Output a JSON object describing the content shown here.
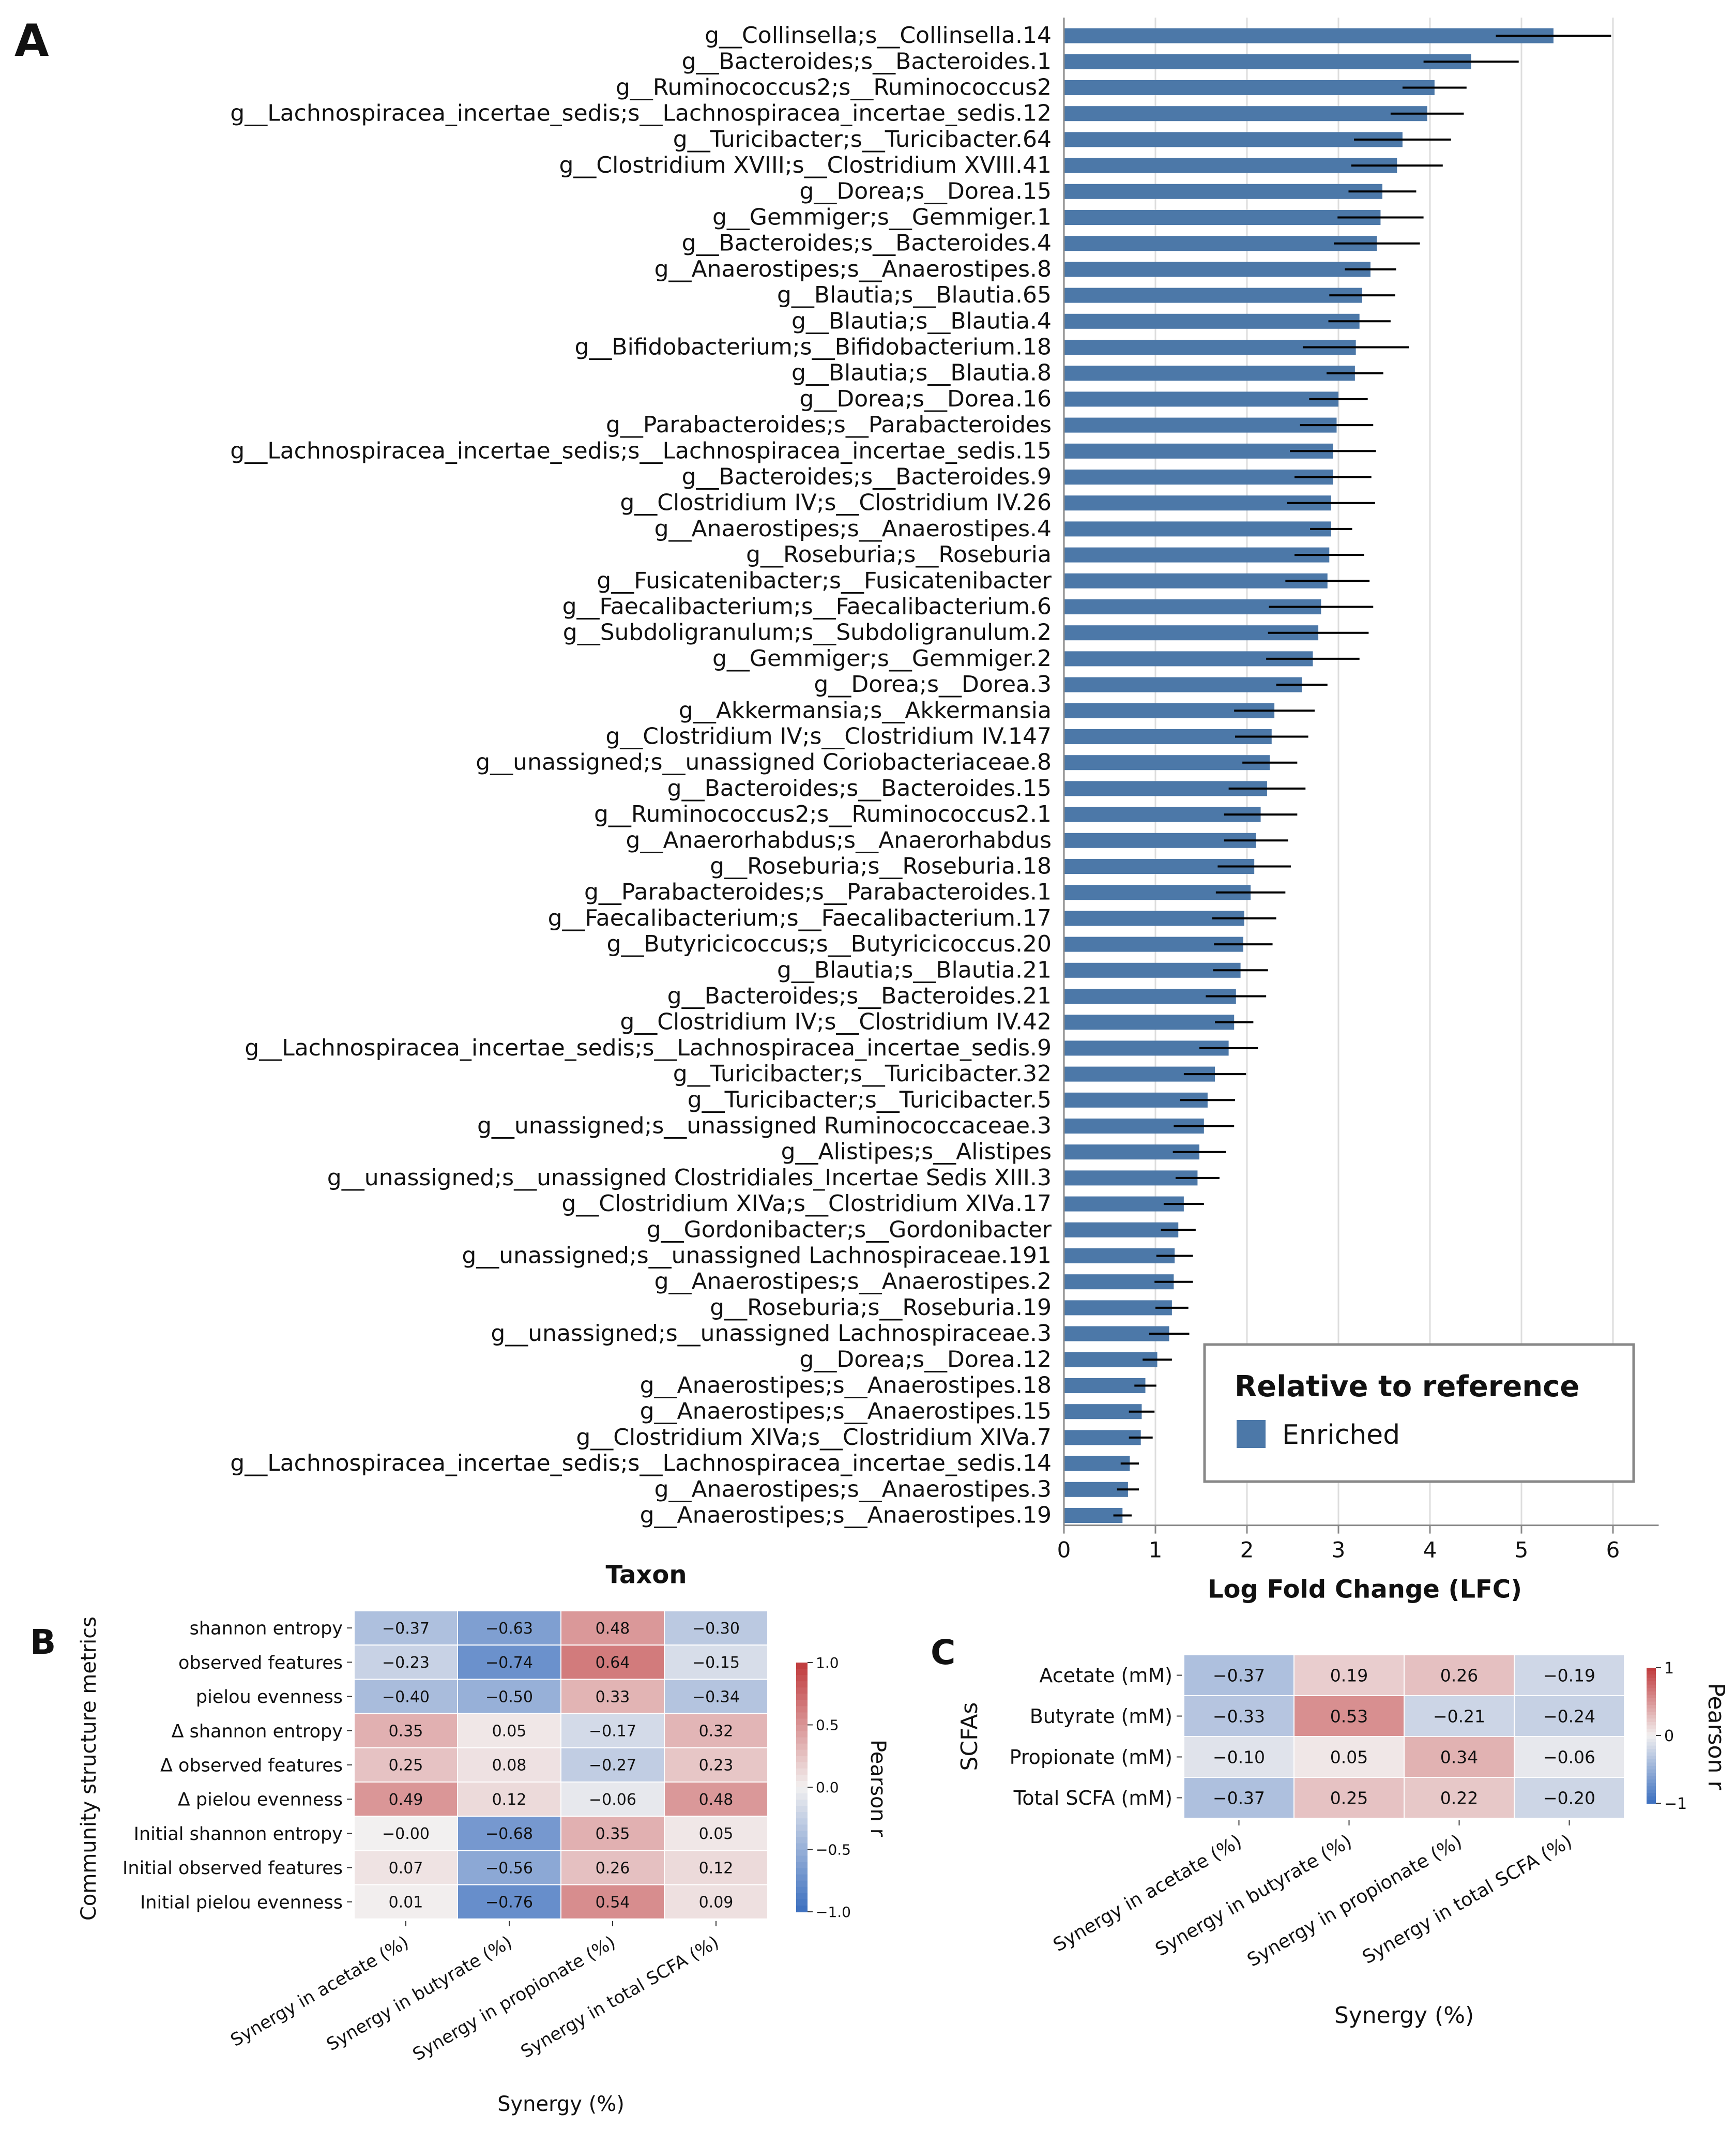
{
  "chart_data": [
    {
      "panel": "A",
      "type": "bar",
      "orientation": "horizontal",
      "xlabel": "Log Fold Change (LFC)",
      "ylabel": "Taxon",
      "xlim": [
        0,
        6.5
      ],
      "xticks": [
        0,
        1,
        2,
        3,
        4,
        5,
        6
      ],
      "legend": {
        "title": "Relative to reference",
        "entries": [
          "Enriched"
        ],
        "placement": "bottom-right"
      },
      "colors": {
        "bar": "#4c78a8",
        "error": "#000000",
        "grid": "#dddddd"
      },
      "bars": [
        {
          "label": "g__Collinsella;s__Collinsella.14",
          "value": 5.35,
          "error": 0.63
        },
        {
          "label": "g__Bacteroides;s__Bacteroides.1",
          "value": 4.45,
          "error": 0.52
        },
        {
          "label": "g__Ruminococcus2;s__Ruminococcus2",
          "value": 4.05,
          "error": 0.35
        },
        {
          "label": "g__Lachnospiracea_incertae_sedis;s__Lachnospiracea_incertae_sedis.12",
          "value": 3.97,
          "error": 0.4
        },
        {
          "label": "g__Turicibacter;s__Turicibacter.64",
          "value": 3.7,
          "error": 0.53
        },
        {
          "label": "g__Clostridium XVIII;s__Clostridium XVIII.41",
          "value": 3.64,
          "error": 0.5
        },
        {
          "label": "g__Dorea;s__Dorea.15",
          "value": 3.48,
          "error": 0.37
        },
        {
          "label": "g__Gemmiger;s__Gemmiger.1",
          "value": 3.46,
          "error": 0.47
        },
        {
          "label": "g__Bacteroides;s__Bacteroides.4",
          "value": 3.42,
          "error": 0.47
        },
        {
          "label": "g__Anaerostipes;s__Anaerostipes.8",
          "value": 3.35,
          "error": 0.28
        },
        {
          "label": "g__Blautia;s__Blautia.65",
          "value": 3.26,
          "error": 0.36
        },
        {
          "label": "g__Blautia;s__Blautia.4",
          "value": 3.23,
          "error": 0.34
        },
        {
          "label": "g__Bifidobacterium;s__Bifidobacterium.18",
          "value": 3.19,
          "error": 0.58
        },
        {
          "label": "g__Blautia;s__Blautia.8",
          "value": 3.18,
          "error": 0.31
        },
        {
          "label": "g__Dorea;s__Dorea.16",
          "value": 3.0,
          "error": 0.32
        },
        {
          "label": "g__Parabacteroides;s__Parabacteroides",
          "value": 2.98,
          "error": 0.4
        },
        {
          "label": "g__Lachnospiracea_incertae_sedis;s__Lachnospiracea_incertae_sedis.15",
          "value": 2.94,
          "error": 0.47
        },
        {
          "label": "g__Bacteroides;s__Bacteroides.9",
          "value": 2.94,
          "error": 0.42
        },
        {
          "label": "g__Clostridium IV;s__Clostridium IV.26",
          "value": 2.92,
          "error": 0.48
        },
        {
          "label": "g__Anaerostipes;s__Anaerostipes.4",
          "value": 2.92,
          "error": 0.23
        },
        {
          "label": "g__Roseburia;s__Roseburia",
          "value": 2.9,
          "error": 0.38
        },
        {
          "label": "g__Fusicatenibacter;s__Fusicatenibacter",
          "value": 2.88,
          "error": 0.46
        },
        {
          "label": "g__Faecalibacterium;s__Faecalibacterium.6",
          "value": 2.81,
          "error": 0.57
        },
        {
          "label": "g__Subdoligranulum;s__Subdoligranulum.2",
          "value": 2.78,
          "error": 0.55
        },
        {
          "label": "g__Gemmiger;s__Gemmiger.2",
          "value": 2.72,
          "error": 0.51
        },
        {
          "label": "g__Dorea;s__Dorea.3",
          "value": 2.6,
          "error": 0.28
        },
        {
          "label": "g__Akkermansia;s__Akkermansia",
          "value": 2.3,
          "error": 0.44
        },
        {
          "label": "g__Clostridium IV;s__Clostridium IV.147",
          "value": 2.27,
          "error": 0.4
        },
        {
          "label": "g__unassigned;s__unassigned Coriobacteriaceae.8",
          "value": 2.25,
          "error": 0.3
        },
        {
          "label": "g__Bacteroides;s__Bacteroides.15",
          "value": 2.22,
          "error": 0.42
        },
        {
          "label": "g__Ruminococcus2;s__Ruminococcus2.1",
          "value": 2.15,
          "error": 0.4
        },
        {
          "label": "g__Anaerorhabdus;s__Anaerorhabdus",
          "value": 2.1,
          "error": 0.35
        },
        {
          "label": "g__Roseburia;s__Roseburia.18",
          "value": 2.08,
          "error": 0.4
        },
        {
          "label": "g__Parabacteroides;s__Parabacteroides.1",
          "value": 2.04,
          "error": 0.38
        },
        {
          "label": "g__Faecalibacterium;s__Faecalibacterium.17",
          "value": 1.97,
          "error": 0.35
        },
        {
          "label": "g__Butyricicoccus;s__Butyricicoccus.20",
          "value": 1.96,
          "error": 0.32
        },
        {
          "label": "g__Blautia;s__Blautia.21",
          "value": 1.93,
          "error": 0.3
        },
        {
          "label": "g__Bacteroides;s__Bacteroides.21",
          "value": 1.88,
          "error": 0.33
        },
        {
          "label": "g__Clostridium IV;s__Clostridium IV.42",
          "value": 1.86,
          "error": 0.21
        },
        {
          "label": "g__Lachnospiracea_incertae_sedis;s__Lachnospiracea_incertae_sedis.9",
          "value": 1.8,
          "error": 0.32
        },
        {
          "label": "g__Turicibacter;s__Turicibacter.32",
          "value": 1.65,
          "error": 0.34
        },
        {
          "label": "g__Turicibacter;s__Turicibacter.5",
          "value": 1.57,
          "error": 0.3
        },
        {
          "label": "g__unassigned;s__unassigned Ruminococcaceae.3",
          "value": 1.53,
          "error": 0.33
        },
        {
          "label": "g__Alistipes;s__Alistipes",
          "value": 1.48,
          "error": 0.29
        },
        {
          "label": "g__unassigned;s__unassigned Clostridiales_Incertae Sedis XIII.3",
          "value": 1.46,
          "error": 0.24
        },
        {
          "label": "g__Clostridium XIVa;s__Clostridium XIVa.17",
          "value": 1.31,
          "error": 0.22
        },
        {
          "label": "g__Gordonibacter;s__Gordonibacter",
          "value": 1.25,
          "error": 0.19
        },
        {
          "label": "g__unassigned;s__unassigned Lachnospiraceae.191",
          "value": 1.21,
          "error": 0.2
        },
        {
          "label": "g__Anaerostipes;s__Anaerostipes.2",
          "value": 1.2,
          "error": 0.21
        },
        {
          "label": "g__Roseburia;s__Roseburia.19",
          "value": 1.18,
          "error": 0.18
        },
        {
          "label": "g__unassigned;s__unassigned Lachnospiraceae.3",
          "value": 1.15,
          "error": 0.22
        },
        {
          "label": "g__Dorea;s__Dorea.12",
          "value": 1.02,
          "error": 0.16
        },
        {
          "label": "g__Anaerostipes;s__Anaerostipes.18",
          "value": 0.89,
          "error": 0.12
        },
        {
          "label": "g__Anaerostipes;s__Anaerostipes.15",
          "value": 0.85,
          "error": 0.14
        },
        {
          "label": "g__Clostridium XIVa;s__Clostridium XIVa.7",
          "value": 0.84,
          "error": 0.13
        },
        {
          "label": "g__Lachnospiracea_incertae_sedis;s__Lachnospiracea_incertae_sedis.14",
          "value": 0.72,
          "error": 0.1
        },
        {
          "label": "g__Anaerostipes;s__Anaerostipes.3",
          "value": 0.7,
          "error": 0.12
        },
        {
          "label": "g__Anaerostipes;s__Anaerostipes.19",
          "value": 0.64,
          "error": 0.1
        }
      ]
    },
    {
      "panel": "B",
      "type": "heatmap",
      "ylabel": "Community structure metrics",
      "xlabel": "Synergy (%)",
      "rows": [
        "shannon entropy",
        "observed features",
        "pielou evenness",
        "Δ shannon entropy",
        "Δ observed features",
        "Δ pielou evenness",
        "Initial shannon entropy",
        "Initial observed features",
        "Initial pielou evenness"
      ],
      "cols": [
        "Synergy in acetate (%)",
        "Synergy in butyrate (%)",
        "Synergy in propionate (%)",
        "Synergy in total SCFA (%)"
      ],
      "values": [
        [
          -0.37,
          -0.63,
          0.48,
          -0.3
        ],
        [
          -0.23,
          -0.74,
          0.64,
          -0.15
        ],
        [
          -0.4,
          -0.5,
          0.33,
          -0.34
        ],
        [
          0.35,
          0.05,
          -0.17,
          0.32
        ],
        [
          0.25,
          0.08,
          -0.27,
          0.23
        ],
        [
          0.49,
          0.12,
          -0.06,
          0.48
        ],
        [
          -0.0,
          -0.68,
          0.35,
          0.05
        ],
        [
          0.07,
          -0.56,
          0.26,
          0.12
        ],
        [
          0.01,
          -0.76,
          0.54,
          0.09
        ]
      ],
      "labels": [
        [
          "−0.37",
          "−0.63",
          "0.48",
          "−0.30"
        ],
        [
          "−0.23",
          "−0.74",
          "0.64",
          "−0.15"
        ],
        [
          "−0.40",
          "−0.50",
          "0.33",
          "−0.34"
        ],
        [
          "0.35",
          "0.05",
          "−0.17",
          "0.32"
        ],
        [
          "0.25",
          "0.08",
          "−0.27",
          "0.23"
        ],
        [
          "0.49",
          "0.12",
          "−0.06",
          "0.48"
        ],
        [
          "−0.00",
          "−0.68",
          "0.35",
          "0.05"
        ],
        [
          "0.07",
          "−0.56",
          "0.26",
          "0.12"
        ],
        [
          "0.01",
          "−0.76",
          "0.54",
          "0.09"
        ]
      ],
      "colorbar": {
        "label": "Pearson r",
        "range": [
          -1,
          1
        ],
        "ticks": [
          1.0,
          0.5,
          0.0,
          -0.5,
          -1.0
        ],
        "tick_labels": [
          "1.0",
          "0.5",
          "0.0",
          "−0.5",
          "−1.0"
        ]
      },
      "colors": {
        "low": "#3b6fbf",
        "mid": "#f2f0f0",
        "high": "#c0393b"
      }
    },
    {
      "panel": "C",
      "type": "heatmap",
      "ylabel": "SCFAs",
      "xlabel": "Synergy (%)",
      "rows": [
        "Acetate (mM)",
        "Butyrate (mM)",
        "Propionate (mM)",
        "Total SCFA (mM)"
      ],
      "cols": [
        "Synergy in acetate (%)",
        "Synergy in butyrate (%)",
        "Synergy in propionate (%)",
        "Synergy in total SCFA (%)"
      ],
      "values": [
        [
          -0.37,
          0.19,
          0.26,
          -0.19
        ],
        [
          -0.33,
          0.53,
          -0.21,
          -0.24
        ],
        [
          -0.1,
          0.05,
          0.34,
          -0.06
        ],
        [
          -0.37,
          0.25,
          0.22,
          -0.2
        ]
      ],
      "labels": [
        [
          "−0.37",
          "0.19",
          "0.26",
          "−0.19"
        ],
        [
          "−0.33",
          "0.53",
          "−0.21",
          "−0.24"
        ],
        [
          "−0.10",
          "0.05",
          "0.34",
          "−0.06"
        ],
        [
          "−0.37",
          "0.25",
          "0.22",
          "−0.20"
        ]
      ],
      "colorbar": {
        "label": "Pearson r",
        "range": [
          -1,
          1
        ],
        "ticks": [
          1,
          0,
          -1
        ],
        "tick_labels": [
          "1",
          "0",
          "−1"
        ]
      },
      "colors": {
        "low": "#3b6fbf",
        "mid": "#f2f0f0",
        "high": "#c0393b"
      }
    }
  ],
  "panel_letters": {
    "a": "A",
    "b": "B",
    "c": "C"
  }
}
